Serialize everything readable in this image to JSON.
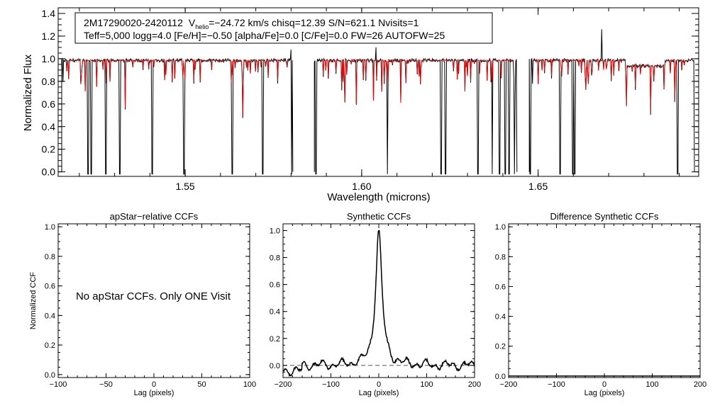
{
  "colors": {
    "observed": "#000000",
    "model": "#d01010",
    "axis": "#000000",
    "dashed": "#555555"
  },
  "top": {
    "info_line1": {
      "star": "2M17290020-2420112",
      "v_letter": "V",
      "v_sub": "helio",
      "v_rest": "=−24.72 km/s  chisq=12.39  S/N=621.1  Nvisits=1"
    },
    "info_line2": "Teff=5,000 logg=4.0 [Fe/H]=−0.50 [alpha/Fe]=0.0 [C/Fe]=0.0 FW=26 AUTOFW=25",
    "ylabel": "Normalized Flux",
    "xlabel": "Wavelength (microns)"
  },
  "ccf_note": "No apStar CCFs.  Only ONE Visit",
  "chart_data": [
    {
      "type": "line",
      "id": "spectrum",
      "title": "",
      "xlabel": "Wavelength (microns)",
      "ylabel": "Normalized Flux",
      "xlim": [
        1.514,
        1.6955
      ],
      "ylim": [
        -0.04,
        1.45
      ],
      "xticks": [
        1.55,
        1.6,
        1.65
      ],
      "xtick_labels": [
        "1.55",
        "1.60",
        "1.65"
      ],
      "yticks": [
        0.0,
        0.2,
        0.4,
        0.6,
        0.8,
        1.0,
        1.2,
        1.4
      ],
      "ytick_labels": [
        "0.0",
        "0.2",
        "0.4",
        "0.6",
        "0.8",
        "1.0",
        "1.2",
        "1.4"
      ],
      "chips": [
        [
          1.515,
          1.5805
        ],
        [
          1.5866,
          1.644
        ],
        [
          1.6475,
          1.6943
        ]
      ],
      "observed_drop_wavelengths": [
        1.5224,
        1.5233,
        1.5275,
        1.5315,
        1.5407,
        1.5497,
        1.5634,
        1.572,
        1.58,
        1.587,
        1.6073,
        1.6225,
        1.6237,
        1.633,
        1.637,
        1.6391,
        1.6407,
        1.6418,
        1.6433,
        1.6478,
        1.6563,
        1.6598,
        1.6604,
        1.6895
      ],
      "spikes": [
        [
          1.58,
          1.08
        ],
        [
          1.604,
          1.1
        ],
        [
          1.668,
          1.26
        ]
      ],
      "series": [
        {
          "name": "observed spectrum",
          "color": "#000000"
        },
        {
          "name": "best-fit synthetic model",
          "color": "#d01010"
        }
      ]
    },
    {
      "type": "line",
      "id": "ccf1",
      "title": "apStar−relative CCFs",
      "xlabel": "Lag (pixels)",
      "ylabel": "Normalized CCF",
      "xlim": [
        -100,
        100
      ],
      "ylim": [
        -0.02,
        1.02
      ],
      "xticks": [
        -100,
        -50,
        0,
        50,
        100
      ],
      "xtick_labels": [
        "−100",
        "−50",
        "0",
        "50",
        "100"
      ],
      "yticks": [
        0.0,
        0.2,
        0.4,
        0.6,
        0.8,
        1.0
      ],
      "ytick_labels": [
        "0.0",
        "0.2",
        "0.4",
        "0.6",
        "0.8",
        "1.0"
      ],
      "series": []
    },
    {
      "type": "line",
      "id": "ccf2",
      "title": "Synthetic CCFs",
      "xlabel": "Lag (pixels)",
      "ylabel": "",
      "xlim": [
        -200,
        200
      ],
      "ylim": [
        -0.09,
        1.05
      ],
      "xticks": [
        -200,
        -100,
        0,
        100,
        200
      ],
      "xtick_labels": [
        "−200",
        "−100",
        "0",
        "100",
        "200"
      ],
      "yticks": [
        0.0,
        0.2,
        0.4,
        0.6,
        0.8,
        1.0
      ],
      "ytick_labels": [
        "0.0",
        "0.2",
        "0.4",
        "0.6",
        "0.8",
        "1.0"
      ],
      "baseline": 0.0,
      "peak": {
        "lag": 0,
        "value": 1.0,
        "width": 8
      },
      "series": [
        {
          "name": "synthetic CCF",
          "color": "#000000"
        }
      ]
    },
    {
      "type": "line",
      "id": "ccf3",
      "title": "Difference Synthetic CCFs",
      "xlabel": "Lag (pixels)",
      "ylabel": "",
      "xlim": [
        -200,
        200
      ],
      "ylim": [
        -0.01,
        1.02
      ],
      "xticks": [
        -200,
        -100,
        0,
        100,
        200
      ],
      "xtick_labels": [
        "−200",
        "−100",
        "0",
        "100",
        "200"
      ],
      "yticks": [
        0.0,
        0.2,
        0.4,
        0.6,
        0.8,
        1.0
      ],
      "ytick_labels": [
        "0.0",
        "0.2",
        "0.4",
        "0.6",
        "0.8",
        "1.0"
      ],
      "flat_value": 0.0,
      "series": [
        {
          "name": "difference CCF",
          "color": "#000000"
        }
      ]
    }
  ]
}
